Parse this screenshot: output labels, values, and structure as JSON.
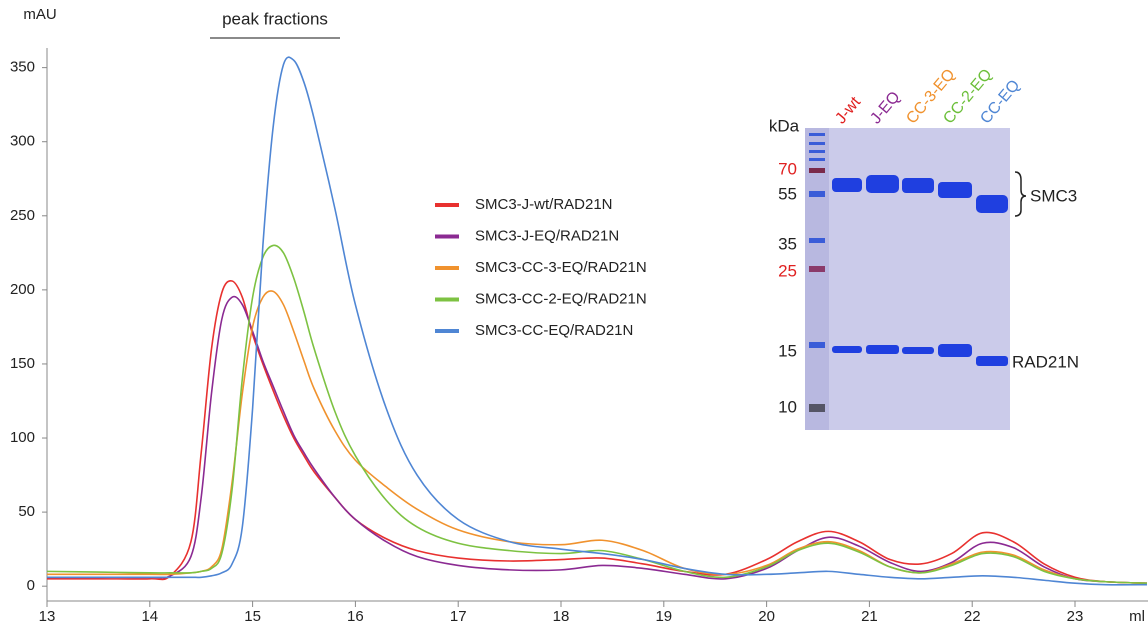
{
  "chart_data": {
    "type": "line",
    "y_label": "mAU",
    "x_label": "ml",
    "annotation": "peak fractions",
    "xlim": [
      13,
      23.71
    ],
    "ylim": [
      -10,
      370
    ],
    "xticks": [
      13,
      14,
      15,
      16,
      17,
      18,
      19,
      20,
      21,
      22,
      23
    ],
    "yticks": [
      0,
      50,
      100,
      150,
      200,
      250,
      300,
      350
    ],
    "legend_position": "center",
    "x": [
      13,
      13.5,
      14,
      14.2,
      14.4,
      14.5,
      14.6,
      14.7,
      14.8,
      14.9,
      15,
      15.1,
      15.2,
      15.3,
      15.4,
      15.5,
      15.6,
      15.8,
      16,
      16.3,
      16.6,
      17,
      17.5,
      18,
      18.4,
      18.8,
      19.2,
      19.6,
      20,
      20.3,
      20.6,
      20.9,
      21.2,
      21.5,
      21.8,
      22.1,
      22.4,
      22.7,
      23,
      23.3,
      23.7
    ],
    "series": [
      {
        "name": "SMC3-J-wt/RAD21N",
        "color": "#e8312f",
        "values": [
          5,
          5,
          5,
          7,
          30,
          90,
          160,
          198,
          206,
          195,
          170,
          150,
          132,
          115,
          100,
          88,
          77,
          60,
          45,
          32,
          24,
          19,
          17,
          18,
          19,
          15,
          10,
          8,
          18,
          30,
          37,
          30,
          18,
          15,
          22,
          36,
          30,
          15,
          6,
          3,
          2
        ]
      },
      {
        "name": "SMC3-J-EQ/RAD21N",
        "color": "#8b2a92",
        "values": [
          6,
          6,
          6,
          7,
          20,
          60,
          130,
          180,
          195,
          190,
          172,
          152,
          135,
          118,
          102,
          90,
          79,
          60,
          45,
          30,
          20,
          14,
          11,
          11,
          14,
          12,
          8,
          5,
          12,
          24,
          33,
          27,
          16,
          10,
          16,
          29,
          26,
          13,
          5,
          3,
          2
        ]
      },
      {
        "name": "SMC3-CC-3-EQ/RAD21N",
        "color": "#f0922e",
        "values": [
          8,
          8,
          8,
          8,
          9,
          10,
          13,
          25,
          70,
          130,
          175,
          195,
          199,
          190,
          172,
          152,
          133,
          105,
          85,
          67,
          52,
          38,
          30,
          28,
          31,
          24,
          12,
          8,
          14,
          25,
          30,
          24,
          13,
          9,
          15,
          23,
          21,
          11,
          5,
          3,
          2
        ]
      },
      {
        "name": "SMC3-CC-2-EQ/RAD21N",
        "color": "#7dc242",
        "values": [
          10,
          9.5,
          9,
          9,
          9,
          10,
          12,
          22,
          65,
          140,
          195,
          222,
          230,
          225,
          208,
          185,
          160,
          118,
          88,
          58,
          40,
          29,
          24,
          22,
          24,
          18,
          10,
          6,
          13,
          24,
          29,
          23,
          13,
          9,
          14,
          22,
          20,
          10,
          5,
          3,
          2
        ]
      },
      {
        "name": "SMC3-CC-EQ/RAD21N",
        "color": "#4f86d4",
        "values": [
          6,
          6,
          6,
          6,
          6,
          6,
          7,
          9,
          15,
          40,
          120,
          230,
          310,
          352,
          355,
          340,
          315,
          255,
          190,
          120,
          75,
          45,
          30,
          25,
          22,
          18,
          12,
          8,
          8,
          9,
          10,
          8,
          6,
          5,
          6,
          7,
          6,
          4,
          2,
          1,
          1
        ]
      }
    ]
  },
  "inset": {
    "unit": "kDa",
    "markers": [
      {
        "label": "70",
        "color": "#e02020"
      },
      {
        "label": "55",
        "color": "#222222"
      },
      {
        "label": "35",
        "color": "#222222"
      },
      {
        "label": "25",
        "color": "#e02020"
      },
      {
        "label": "15",
        "color": "#222222"
      },
      {
        "label": "10",
        "color": "#222222"
      }
    ],
    "lanes": [
      {
        "label": "J-wt",
        "color": "#e02020"
      },
      {
        "label": "J-EQ",
        "color": "#8b2a92"
      },
      {
        "label": "CC-3-EQ",
        "color": "#f0922e"
      },
      {
        "label": "CC-2-EQ",
        "color": "#6cbf3a"
      },
      {
        "label": "CC-EQ",
        "color": "#4f86d4"
      }
    ],
    "bands": [
      "SMC3",
      "RAD21N"
    ]
  }
}
